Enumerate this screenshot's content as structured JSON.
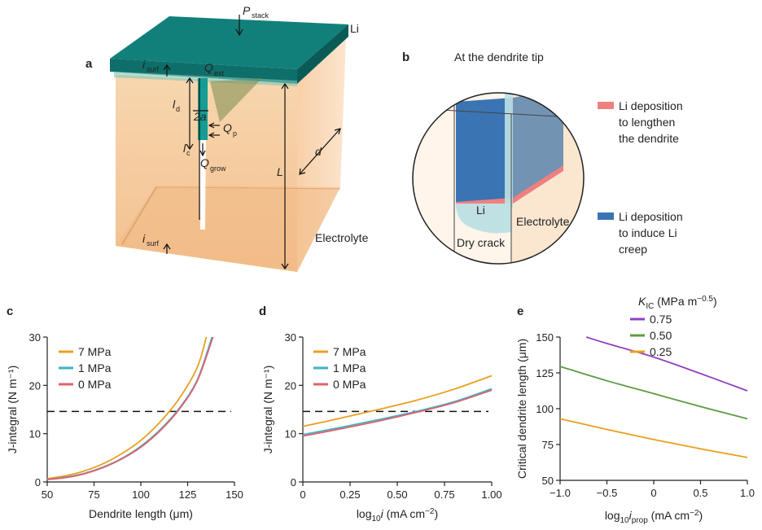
{
  "panels": {
    "a": {
      "letter": "a",
      "labels": {
        "p": "P",
        "p_sub": "stack",
        "li": "Li",
        "isurf_top": "i",
        "isurf_top_sub": "surf",
        "qext": "Q",
        "qext_sub": "ext",
        "ld": "l",
        "ld_sub": "d",
        "twoa": "2a",
        "qp": "Q",
        "qp_sub": "p",
        "lc": "l",
        "lc_sub": "c",
        "qgrow": "Q",
        "qgrow_sub": "grow",
        "L": "L",
        "d": "d",
        "isurf_bot": "i",
        "isurf_bot_sub": "surf",
        "electrolyte": "Electrolyte"
      }
    },
    "b": {
      "letter": "b",
      "title": "At the dendrite tip",
      "li": "Li",
      "electrolyte": "Electrolyte",
      "dry_crack": "Dry crack",
      "legend": [
        {
          "color": "#f08080",
          "lines": [
            "Li deposition",
            "to lengthen",
            "the dendrite"
          ]
        },
        {
          "color": "#3b74b3",
          "lines": [
            "Li deposition",
            "to induce Li",
            "creep"
          ]
        }
      ]
    }
  },
  "chart_data": [
    {
      "panel": "c",
      "type": "line",
      "xlabel": "Dendrite length (μm)",
      "ylabel": "J-integral (N m⁻¹)",
      "xlim": [
        50,
        150
      ],
      "ylim": [
        0,
        30
      ],
      "xticks": [
        "50",
        "75",
        "100",
        "125",
        "150"
      ],
      "yticks": [
        "0",
        "10",
        "20",
        "30"
      ],
      "threshold": 14.6,
      "series": [
        {
          "name": "7 MPa",
          "color": "#e8a020",
          "x": [
            50,
            60,
            70,
            80,
            90,
            100,
            110,
            120,
            130,
            135
          ],
          "y": [
            0.7,
            1.3,
            2.3,
            3.8,
            5.9,
            8.6,
            12.3,
            17.0,
            23.6,
            30.0
          ]
        },
        {
          "name": "1 MPa",
          "color": "#3fb3bf",
          "x": [
            50,
            60,
            70,
            80,
            90,
            100,
            110,
            120,
            130,
            138
          ],
          "y": [
            0.5,
            1.0,
            1.8,
            3.1,
            4.9,
            7.4,
            10.7,
            15.0,
            21.0,
            30.0
          ]
        },
        {
          "name": "0 MPa",
          "color": "#e06070",
          "x": [
            50,
            60,
            70,
            80,
            90,
            100,
            110,
            120,
            130,
            138.5
          ],
          "y": [
            0.5,
            0.9,
            1.7,
            3.0,
            4.8,
            7.2,
            10.5,
            14.8,
            20.8,
            30.0
          ]
        }
      ]
    },
    {
      "panel": "d",
      "type": "line",
      "xlabel": "log₁₀i (mA cm⁻²)",
      "ylabel": "J-integral (N m⁻¹)",
      "xlim": [
        0,
        1.0
      ],
      "ylim": [
        0,
        30
      ],
      "xticks": [
        "0",
        "0.25",
        "0.50",
        "0.75",
        "1.00"
      ],
      "yticks": [
        "0",
        "10",
        "20",
        "30"
      ],
      "threshold": 14.6,
      "series": [
        {
          "name": "7 MPa",
          "color": "#e8a020",
          "x": [
            0,
            0.2,
            0.4,
            0.6,
            0.8,
            1.0
          ],
          "y": [
            11.5,
            13.2,
            15.0,
            16.9,
            19.2,
            22.0
          ]
        },
        {
          "name": "1 MPa",
          "color": "#3fb3bf",
          "x": [
            0,
            0.2,
            0.4,
            0.6,
            0.8,
            1.0
          ],
          "y": [
            9.8,
            11.3,
            12.9,
            14.6,
            16.6,
            19.3
          ]
        },
        {
          "name": "0 MPa",
          "color": "#e06070",
          "x": [
            0,
            0.2,
            0.4,
            0.6,
            0.8,
            1.0
          ],
          "y": [
            9.5,
            11.0,
            12.6,
            14.4,
            16.4,
            19.0
          ]
        }
      ]
    },
    {
      "panel": "e",
      "type": "line",
      "xlabel": "log₁₀i_prop (mA cm⁻²)",
      "ylabel": "Critical dendrite length (μm)",
      "legend_title": "K_IC (MPa m^-0.5)",
      "xlim": [
        -1.0,
        1.0
      ],
      "ylim": [
        50,
        150
      ],
      "xticks": [
        "−1.0",
        "−0.5",
        "0",
        "0.5",
        "1.0"
      ],
      "yticks": [
        "50",
        "75",
        "100",
        "125",
        "150"
      ],
      "series": [
        {
          "name": "0.75",
          "color": "#9040c0",
          "x": [
            -0.72,
            -0.5,
            0,
            0.5,
            1.0
          ],
          "y": [
            150,
            145.5,
            136,
            124.5,
            112.5
          ]
        },
        {
          "name": "0.50",
          "color": "#5f9a45",
          "x": [
            -1.0,
            -0.5,
            0,
            0.5,
            1.0
          ],
          "y": [
            129.5,
            119.5,
            110.5,
            101.5,
            93
          ]
        },
        {
          "name": "0.25",
          "color": "#e8a020",
          "x": [
            -1.0,
            -0.5,
            0,
            0.5,
            1.0
          ],
          "y": [
            93,
            85.5,
            78.5,
            72,
            66
          ]
        }
      ]
    }
  ]
}
